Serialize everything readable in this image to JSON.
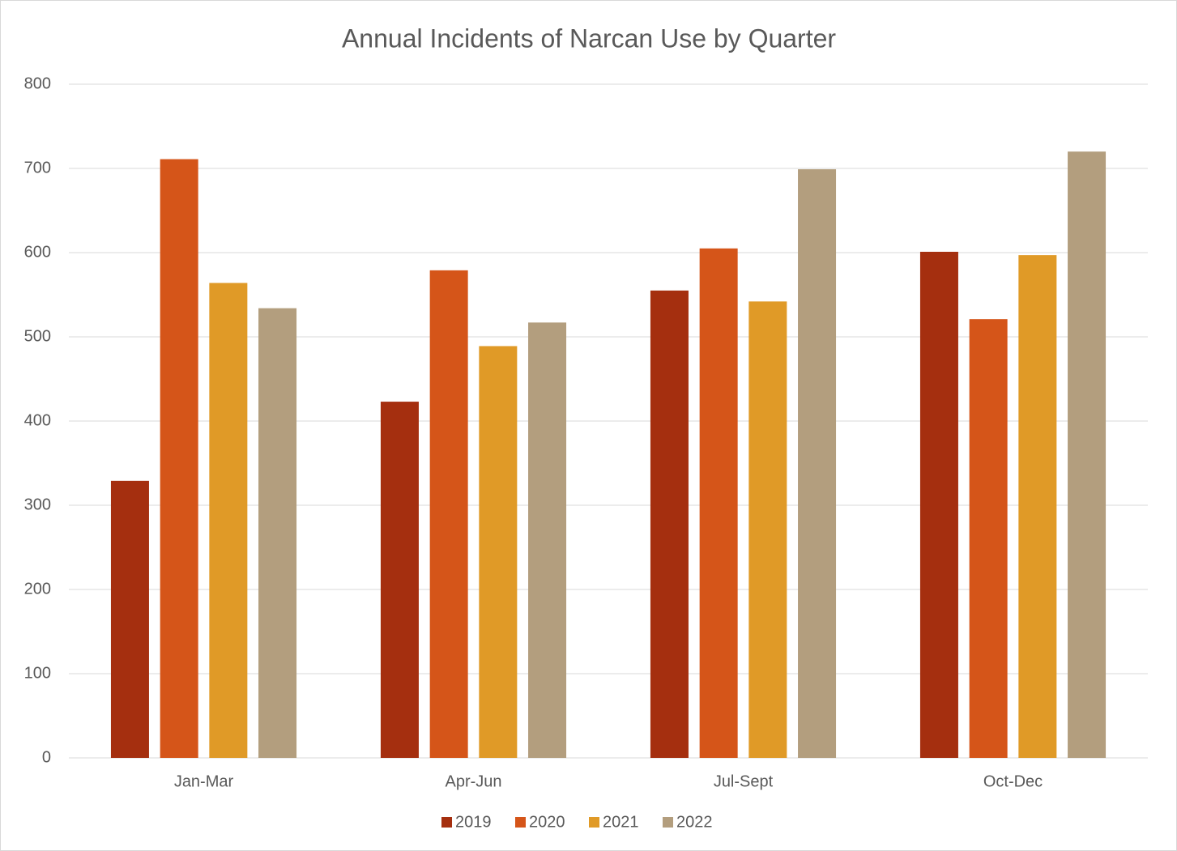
{
  "chart_data": {
    "type": "bar",
    "title": "Annual Incidents of Narcan Use by Quarter",
    "categories": [
      "Jan-Mar",
      "Apr-Jun",
      "Jul-Sept",
      "Oct-Dec"
    ],
    "series": [
      {
        "name": "2019",
        "color": "#a52f0f",
        "values": [
          329,
          423,
          555,
          601
        ]
      },
      {
        "name": "2020",
        "color": "#d55519",
        "values": [
          711,
          579,
          605,
          521
        ]
      },
      {
        "name": "2021",
        "color": "#e09a27",
        "values": [
          564,
          489,
          542,
          597
        ]
      },
      {
        "name": "2022",
        "color": "#b39e7e",
        "values": [
          534,
          517,
          699,
          720
        ]
      }
    ],
    "ylim": [
      0,
      800
    ],
    "yticks": [
      0,
      100,
      200,
      300,
      400,
      500,
      600,
      700,
      800
    ],
    "grid": true,
    "legend": "bottom"
  }
}
